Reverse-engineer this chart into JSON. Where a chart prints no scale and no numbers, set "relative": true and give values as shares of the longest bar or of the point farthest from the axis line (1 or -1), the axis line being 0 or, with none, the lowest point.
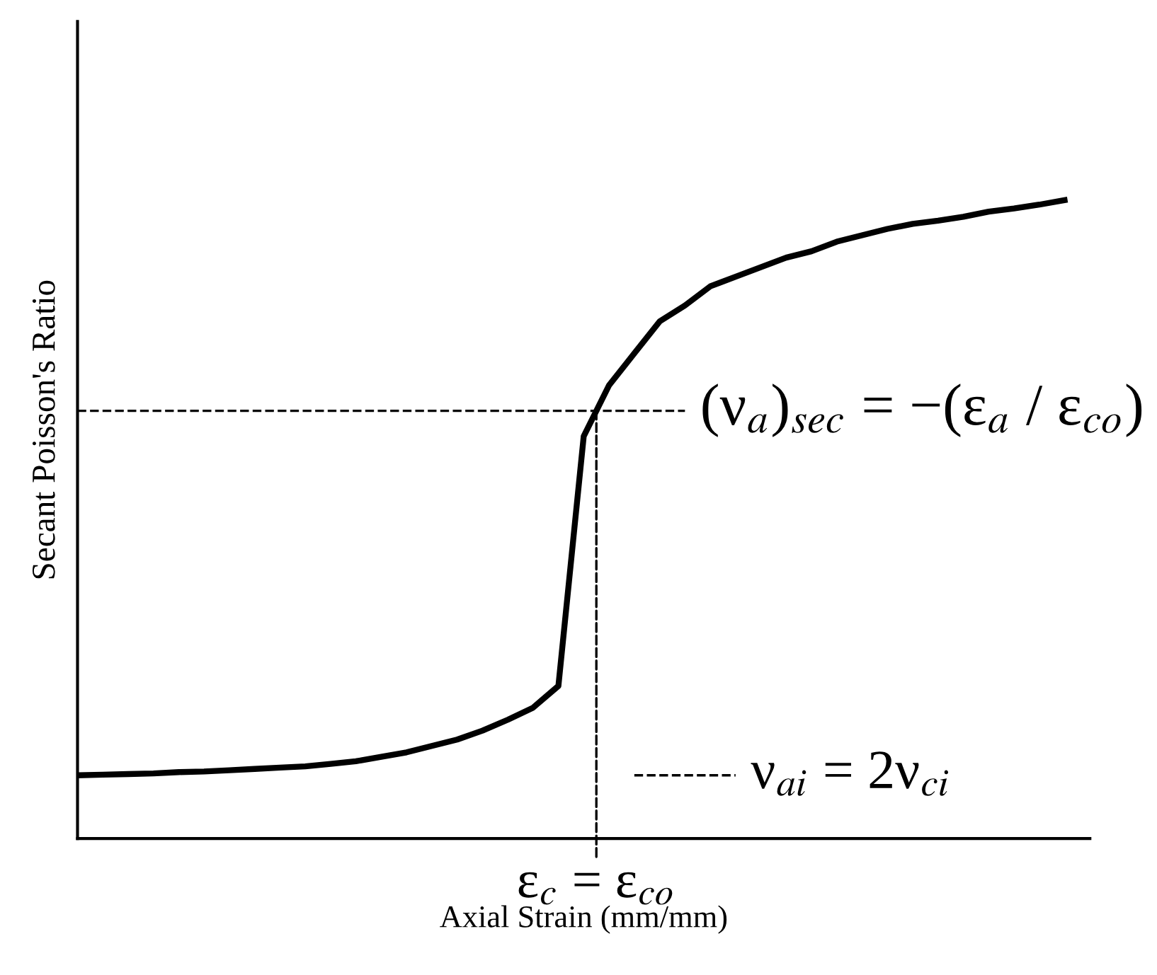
{
  "chart_data": {
    "type": "line",
    "relative": true,
    "xlabel": "Axial Strain (mm/mm)",
    "ylabel": "Secant Poisson's Ratio",
    "categories": [
      null,
      null,
      null,
      null,
      null,
      null,
      null,
      null,
      null,
      null,
      null,
      null,
      null,
      null,
      null,
      null,
      null,
      null,
      null,
      null,
      null,
      null,
      null,
      null,
      null,
      null,
      null,
      null,
      null,
      null,
      null,
      null,
      null,
      null,
      null,
      null,
      null,
      null,
      null,
      null
    ],
    "series": [
      {
        "color": "#000000",
        "line_style": "solid",
        "values": [
          0.099,
          0.1,
          0.101,
          0.102,
          0.104,
          0.105,
          0.107,
          0.109,
          0.111,
          0.113,
          0.117,
          0.121,
          0.128,
          0.135,
          0.145,
          0.155,
          0.169,
          0.186,
          0.205,
          0.239,
          0.63,
          0.71,
          0.76,
          0.81,
          0.835,
          0.865,
          0.88,
          0.895,
          0.91,
          0.92,
          0.935,
          0.945,
          0.955,
          0.963,
          0.968,
          0.974,
          0.982,
          0.987,
          0.993,
          1.0
        ]
      },
      {
        "color": "#000000",
        "line_style": "dashed",
        "values": [
          0.67,
          0.67,
          0.67,
          0.67,
          0.67,
          0.67,
          0.67,
          0.67,
          0.67,
          0.67,
          0.67,
          0.67,
          0.67,
          0.67,
          0.67,
          0.67,
          0.67,
          0.67,
          0.67,
          0.67,
          0.67,
          0.67,
          0.67,
          0.67,
          0.67,
          null,
          null,
          null,
          null,
          null,
          null,
          null,
          null,
          null,
          null,
          null,
          null,
          null,
          null,
          null
        ]
      },
      {
        "color": "#000000",
        "line_style": "dashed",
        "values": [
          null,
          null,
          null,
          null,
          null,
          null,
          null,
          null,
          null,
          null,
          null,
          null,
          null,
          null,
          null,
          null,
          null,
          null,
          null,
          null,
          null,
          null,
          0.099,
          0.099,
          0.099,
          0.099,
          0.099,
          null,
          null,
          null,
          null,
          null,
          null,
          null,
          null,
          null,
          null,
          null,
          null,
          null
        ]
      }
    ],
    "marker": "none",
    "annotations": [
      "(ν$_{a}$)$_{sec}$ = −(ε$_{a}$ / ε$_{co}$)",
      "ν$_{ai}$ = 2ν$_{ci}$",
      "ε$_{c}$ = ε$_{co}$"
    ]
  }
}
